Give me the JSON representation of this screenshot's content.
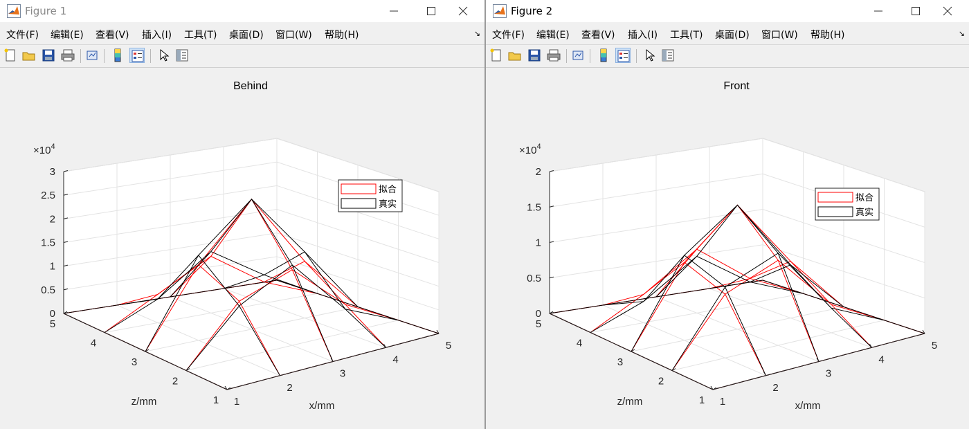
{
  "windows": [
    {
      "title": "Figure 1",
      "active": false,
      "menu": [
        "文件(F)",
        "编辑(E)",
        "查看(V)",
        "插入(I)",
        "工具(T)",
        "桌面(D)",
        "窗口(W)",
        "帮助(H)"
      ],
      "toolbar": [
        "new-figure-icon",
        "open-file-icon",
        "save-icon",
        "print-icon",
        "link-plot-icon",
        "colorbar-icon",
        "legend-icon",
        "pointer-icon",
        "property-editor-icon"
      ],
      "chart_data": {
        "type": "surface-mesh",
        "title": "Behind",
        "xlabel": "x/mm",
        "zlabel_axis": "z/mm",
        "xlim": [
          1,
          5
        ],
        "zlim": [
          1,
          5
        ],
        "ylim": [
          0,
          30000
        ],
        "y_exponent_label": "×10",
        "y_exponent_power": "4",
        "x_ticks": [
          "1",
          "2",
          "3",
          "4",
          "5"
        ],
        "z_ticks": [
          "1",
          "2",
          "3",
          "4",
          "5"
        ],
        "y_ticks": [
          "0",
          "0.5",
          "1",
          "1.5",
          "2",
          "2.5",
          "3"
        ],
        "y_tick_values": [
          0,
          5000,
          10000,
          15000,
          20000,
          25000,
          30000
        ],
        "legend": [
          "拟合",
          "真实"
        ],
        "legend_position": "upper-right",
        "series": [
          {
            "name": "拟合",
            "color": "#ff0000",
            "values": [
              [
                0,
                0,
                0,
                0,
                0
              ],
              [
                0,
                12000,
                16000,
                6000,
                0
              ],
              [
                0,
                16000,
                27500,
                12000,
                0
              ],
              [
                0,
                6000,
                12000,
                4500,
                0
              ],
              [
                0,
                0,
                0,
                0,
                0
              ]
            ]
          },
          {
            "name": "真实",
            "color": "#000000",
            "values": [
              [
                0,
                0,
                0,
                0,
                0
              ],
              [
                0,
                11000,
                17000,
                5000,
                0
              ],
              [
                0,
                18000,
                27500,
                14000,
                0
              ],
              [
                0,
                5000,
                13000,
                6000,
                0
              ],
              [
                0,
                0,
                0,
                0,
                0
              ]
            ]
          }
        ]
      }
    },
    {
      "title": "Figure 2",
      "active": true,
      "menu": [
        "文件(F)",
        "编辑(E)",
        "查看(V)",
        "插入(I)",
        "工具(T)",
        "桌面(D)",
        "窗口(W)",
        "帮助(H)"
      ],
      "toolbar": [
        "new-figure-icon",
        "open-file-icon",
        "save-icon",
        "print-icon",
        "link-plot-icon",
        "colorbar-icon",
        "legend-icon",
        "pointer-icon",
        "property-editor-icon"
      ],
      "chart_data": {
        "type": "surface-mesh",
        "title": "Front",
        "xlabel": "x/mm",
        "zlabel_axis": "z/mm",
        "xlim": [
          1,
          5
        ],
        "zlim": [
          1,
          5
        ],
        "ylim": [
          0,
          20000
        ],
        "y_exponent_label": "×10",
        "y_exponent_power": "4",
        "x_ticks": [
          "1",
          "2",
          "3",
          "4",
          "5"
        ],
        "z_ticks": [
          "1",
          "2",
          "3",
          "4",
          "5"
        ],
        "y_ticks": [
          "0",
          "0.5",
          "1",
          "1.5",
          "2"
        ],
        "y_tick_values": [
          0,
          5000,
          10000,
          15000,
          20000
        ],
        "legend": [
          "拟合",
          "真实"
        ],
        "legend_position": "upper-right",
        "series": [
          {
            "name": "拟合",
            "color": "#ff0000",
            "values": [
              [
                0,
                0,
                0,
                0,
                0
              ],
              [
                0,
                9000,
                12000,
                4000,
                0
              ],
              [
                0,
                11000,
                17500,
                8000,
                0
              ],
              [
                0,
                4000,
                9000,
                3500,
                0
              ],
              [
                0,
                0,
                0,
                0,
                0
              ]
            ]
          },
          {
            "name": "真实",
            "color": "#000000",
            "values": [
              [
                0,
                0,
                0,
                0,
                0
              ],
              [
                0,
                10000,
                13000,
                3500,
                0
              ],
              [
                0,
                12000,
                17500,
                7500,
                0
              ],
              [
                0,
                3000,
                8000,
                3000,
                0
              ],
              [
                0,
                0,
                0,
                0,
                0
              ]
            ]
          }
        ]
      }
    }
  ]
}
